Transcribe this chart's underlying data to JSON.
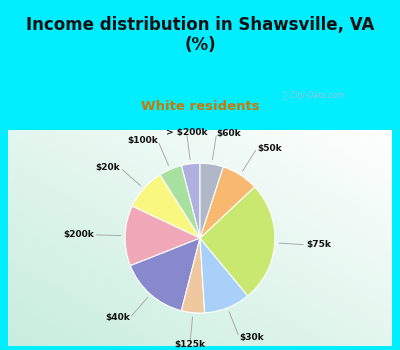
{
  "title": "Income distribution in Shawsville, VA\n(%)",
  "subtitle": "White residents",
  "title_color": "#111111",
  "subtitle_color": "#cc7700",
  "bg_cyan": "#00eeff",
  "watermark": "ⓘ City-Data.com",
  "labels": [
    "> $200k",
    "$100k",
    "$20k",
    "$200k",
    "$40k",
    "$125k",
    "$30k",
    "$75k",
    "$50k",
    "$60k"
  ],
  "values": [
    4,
    5,
    9,
    13,
    15,
    5,
    10,
    26,
    8,
    5
  ],
  "colors": [
    "#b0b0e0",
    "#a8e0a0",
    "#f8f880",
    "#f0a8b8",
    "#8888cc",
    "#f0c8a0",
    "#a8d0f8",
    "#c8e870",
    "#f8b870",
    "#b0b8c8"
  ],
  "startangle": 90
}
